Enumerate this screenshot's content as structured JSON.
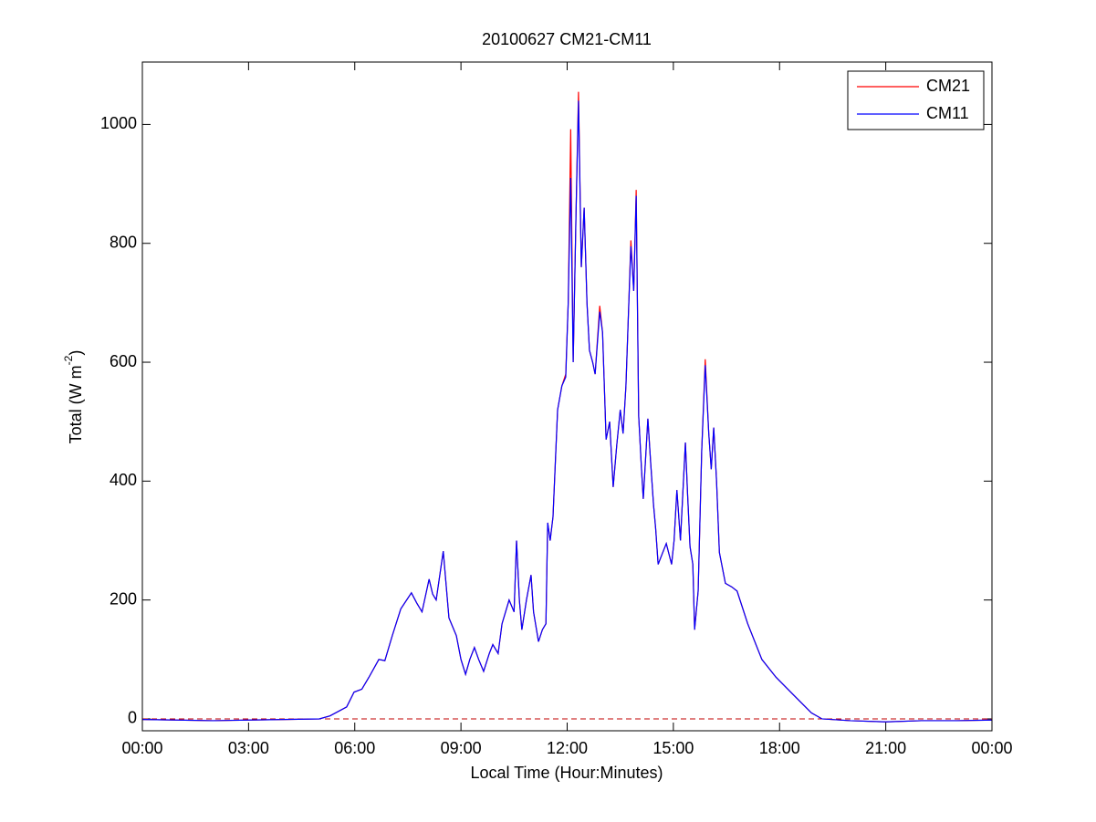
{
  "chart_data": {
    "type": "line",
    "title": "20100627 CM21-CM11",
    "xlabel": "Local Time (Hour:Minutes)",
    "ylabel": {
      "text": "Total (W m",
      "sup": "-2",
      "close": ")"
    },
    "xlim": [
      0,
      24
    ],
    "xticks": [
      {
        "value": 0,
        "label": "00:00"
      },
      {
        "value": 3,
        "label": "03:00"
      },
      {
        "value": 6,
        "label": "06:00"
      },
      {
        "value": 9,
        "label": "09:00"
      },
      {
        "value": 12,
        "label": "12:00"
      },
      {
        "value": 15,
        "label": "15:00"
      },
      {
        "value": 18,
        "label": "18:00"
      },
      {
        "value": 21,
        "label": "21:00"
      },
      {
        "value": 24,
        "label": "00:00"
      }
    ],
    "ylim": [
      -20,
      1105
    ],
    "yticks": [
      0,
      200,
      400,
      600,
      800,
      1000
    ],
    "hline": 0,
    "hline_color": "#c00000",
    "legend": "northeast",
    "x": [
      0,
      1,
      2,
      3,
      4,
      5,
      5.3,
      5.77,
      5.98,
      6.2,
      6.4,
      6.68,
      6.85,
      7.06,
      7.3,
      7.6,
      7.75,
      7.9,
      8.1,
      8.2,
      8.3,
      8.5,
      8.66,
      8.87,
      9.0,
      9.13,
      9.25,
      9.38,
      9.5,
      9.64,
      9.8,
      9.9,
      10.05,
      10.16,
      10.36,
      10.5,
      10.57,
      10.65,
      10.72,
      10.85,
      10.98,
      11.05,
      11.19,
      11.3,
      11.4,
      11.45,
      11.52,
      11.6,
      11.73,
      11.85,
      11.96,
      12.03,
      12.1,
      12.17,
      12.25,
      12.32,
      12.4,
      12.48,
      12.56,
      12.63,
      12.72,
      12.79,
      12.92,
      13.0,
      13.1,
      13.2,
      13.3,
      13.4,
      13.5,
      13.58,
      13.66,
      13.73,
      13.8,
      13.88,
      13.95,
      14.02,
      14.1,
      14.15,
      14.28,
      14.36,
      14.44,
      14.5,
      14.57,
      14.7,
      14.8,
      14.95,
      15.02,
      15.1,
      15.2,
      15.34,
      15.4,
      15.47,
      15.55,
      15.6,
      15.7,
      15.8,
      15.9,
      16.0,
      16.07,
      16.14,
      16.22,
      16.3,
      16.47,
      16.65,
      16.8,
      17.1,
      17.5,
      17.9,
      18.4,
      18.9,
      19.2,
      20,
      21,
      22,
      23,
      24
    ],
    "series": [
      {
        "name": "CM21",
        "color": "#ff0000",
        "values": [
          -1,
          -2,
          -3,
          -2,
          -1,
          0,
          5,
          20,
          45,
          50,
          70,
          100,
          98,
          140,
          185,
          212,
          195,
          180,
          235,
          210,
          200,
          282,
          170,
          140,
          100,
          75,
          100,
          120,
          100,
          80,
          110,
          125,
          110,
          160,
          200,
          180,
          300,
          200,
          150,
          200,
          242,
          180,
          130,
          150,
          160,
          330,
          300,
          340,
          520,
          560,
          580,
          700,
          992,
          600,
          850,
          1055,
          760,
          860,
          700,
          620,
          600,
          580,
          695,
          650,
          470,
          500,
          390,
          460,
          520,
          480,
          560,
          680,
          805,
          720,
          890,
          510,
          420,
          370,
          505,
          430,
          360,
          320,
          260,
          280,
          295,
          260,
          300,
          385,
          300,
          465,
          380,
          290,
          260,
          150,
          215,
          450,
          605,
          480,
          420,
          490,
          400,
          280,
          228,
          222,
          215,
          160,
          100,
          70,
          40,
          10,
          0,
          -3,
          -5,
          -3,
          -3,
          -2
        ]
      },
      {
        "name": "CM11",
        "color": "#0000ff",
        "values": [
          -1,
          -2,
          -3,
          -2,
          -1,
          0,
          5,
          20,
          45,
          50,
          70,
          100,
          98,
          140,
          185,
          212,
          195,
          180,
          235,
          210,
          200,
          282,
          170,
          140,
          100,
          75,
          100,
          120,
          100,
          80,
          110,
          125,
          110,
          160,
          200,
          180,
          300,
          200,
          150,
          200,
          242,
          180,
          130,
          150,
          160,
          330,
          300,
          340,
          520,
          560,
          575,
          700,
          910,
          600,
          850,
          1040,
          760,
          860,
          700,
          620,
          600,
          580,
          685,
          650,
          470,
          500,
          390,
          460,
          520,
          480,
          560,
          680,
          795,
          720,
          880,
          510,
          420,
          370,
          505,
          430,
          360,
          320,
          260,
          280,
          295,
          260,
          300,
          385,
          300,
          465,
          380,
          290,
          260,
          150,
          215,
          450,
          595,
          480,
          420,
          490,
          400,
          280,
          228,
          222,
          215,
          160,
          100,
          70,
          40,
          10,
          0,
          -3,
          -5,
          -3,
          -3,
          -2
        ]
      }
    ]
  }
}
